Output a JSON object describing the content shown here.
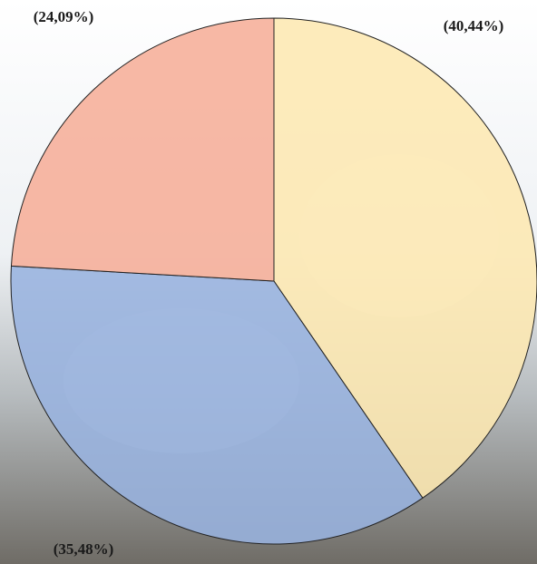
{
  "chart_data": {
    "type": "pie",
    "values": [
      40.44,
      35.48,
      24.09
    ],
    "value_labels": [
      "(40,44%)",
      "(35,48%)",
      "(24,09%)"
    ],
    "colors": [
      "#fde8b2",
      "#98b3df",
      "#f6ae98"
    ]
  }
}
